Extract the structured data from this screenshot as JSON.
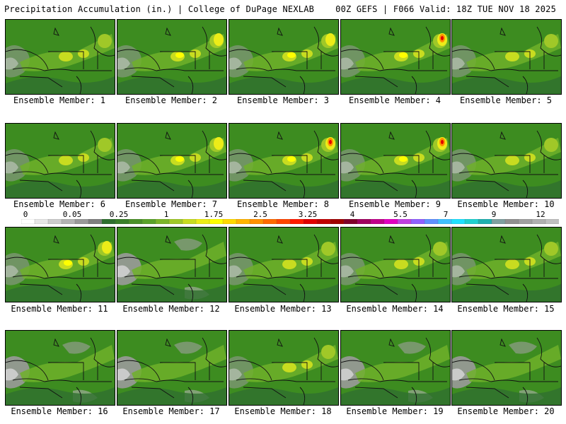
{
  "header": {
    "left": "Precipitation Accumulation (in.) | College of DuPage NEXLAB",
    "right": "00Z GEFS | F066 Valid: 18Z TUE NOV 18 2025"
  },
  "panels": [
    {
      "label": "Ensemble Member: 1",
      "intensity": 2
    },
    {
      "label": "Ensemble Member: 2",
      "intensity": 3
    },
    {
      "label": "Ensemble Member: 3",
      "intensity": 3
    },
    {
      "label": "Ensemble Member: 4",
      "intensity": 4
    },
    {
      "label": "Ensemble Member: 5",
      "intensity": 2
    },
    {
      "label": "Ensemble Member: 6",
      "intensity": 2
    },
    {
      "label": "Ensemble Member: 7",
      "intensity": 3
    },
    {
      "label": "Ensemble Member: 8",
      "intensity": 4
    },
    {
      "label": "Ensemble Member: 9",
      "intensity": 4
    },
    {
      "label": "Ensemble Member: 10",
      "intensity": 2
    },
    {
      "label": "Ensemble Member: 11",
      "intensity": 3
    },
    {
      "label": "Ensemble Member: 12",
      "intensity": 1
    },
    {
      "label": "Ensemble Member: 13",
      "intensity": 2
    },
    {
      "label": "Ensemble Member: 14",
      "intensity": 2
    },
    {
      "label": "Ensemble Member: 15",
      "intensity": 2
    },
    {
      "label": "Ensemble Member: 16",
      "intensity": 1
    },
    {
      "label": "Ensemble Member: 17",
      "intensity": 1
    },
    {
      "label": "Ensemble Member: 18",
      "intensity": 2
    },
    {
      "label": "Ensemble Member: 19",
      "intensity": 1
    },
    {
      "label": "Ensemble Member: 20",
      "intensity": 1
    }
  ],
  "legend": {
    "ticks": [
      "0",
      "0.05",
      "0.25",
      "1",
      "1.75",
      "2.5",
      "3.25",
      "4",
      "5.5",
      "7",
      "9",
      "12"
    ],
    "colors": [
      "#ffffff",
      "#e6e6e6",
      "#cccccc",
      "#b3b3b3",
      "#999999",
      "#7f7f7f",
      "#2f6f2f",
      "#3a7f2a",
      "#4a9028",
      "#5aa22a",
      "#7cb52a",
      "#a0c828",
      "#c8dc20",
      "#ecec18",
      "#ffff00",
      "#ffd800",
      "#ffb400",
      "#ff9000",
      "#ff6a00",
      "#ff4500",
      "#ff1a00",
      "#e00000",
      "#c00000",
      "#a00000",
      "#80002a",
      "#a00060",
      "#c0008a",
      "#e000c0",
      "#c040e0",
      "#9060ff",
      "#6090ff",
      "#40c0ff",
      "#20e0ff",
      "#20d0d0",
      "#20b0b0",
      "#80a0a0",
      "#909090",
      "#a0a0a0",
      "#b0b0b0",
      "#c0c0c0"
    ]
  }
}
